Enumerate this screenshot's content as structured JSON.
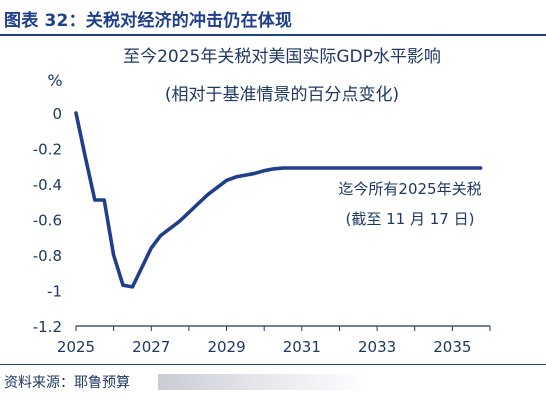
{
  "figure": {
    "title": "图表 32：关税对经济的冲击仍在体现",
    "source": "资料来源：耶鲁预算"
  },
  "chart_data": {
    "type": "line",
    "title": "至今2025年关税对美国实际GDP水平影响",
    "subtitle": "(相对于基准情景的百分点变化)",
    "ylabel": "%",
    "xlabel": "",
    "xlim": [
      2025,
      2036
    ],
    "ylim": [
      -1.2,
      0
    ],
    "x_ticks": [
      "2025",
      "2027",
      "2029",
      "2031",
      "2033",
      "2035"
    ],
    "y_ticks": [
      "0",
      "-0.2",
      "-0.4",
      "-0.6",
      "-0.8",
      "-1",
      "-1.2"
    ],
    "grid": false,
    "series": [
      {
        "name": "迄今所有2025年关税",
        "color": "#1f3e8c",
        "x": [
          2025.0,
          2025.25,
          2025.5,
          2025.75,
          2026.0,
          2026.25,
          2026.5,
          2026.75,
          2027.0,
          2027.25,
          2027.5,
          2027.75,
          2028.0,
          2028.25,
          2028.5,
          2028.75,
          2029.0,
          2029.25,
          2029.5,
          2029.75,
          2030.0,
          2030.25,
          2030.5,
          2031.0,
          2032.0,
          2033.0,
          2034.0,
          2035.0,
          2035.75
        ],
        "values": [
          0.0,
          -0.25,
          -0.49,
          -0.49,
          -0.8,
          -0.97,
          -0.98,
          -0.87,
          -0.76,
          -0.69,
          -0.65,
          -0.61,
          -0.56,
          -0.51,
          -0.46,
          -0.42,
          -0.38,
          -0.36,
          -0.35,
          -0.34,
          -0.325,
          -0.315,
          -0.31,
          -0.31,
          -0.31,
          -0.31,
          -0.31,
          -0.31,
          -0.31
        ]
      }
    ],
    "annotations": [
      {
        "text": "迄今所有2025年关税"
      },
      {
        "text": "(截至 11 月 17 日)"
      }
    ]
  }
}
